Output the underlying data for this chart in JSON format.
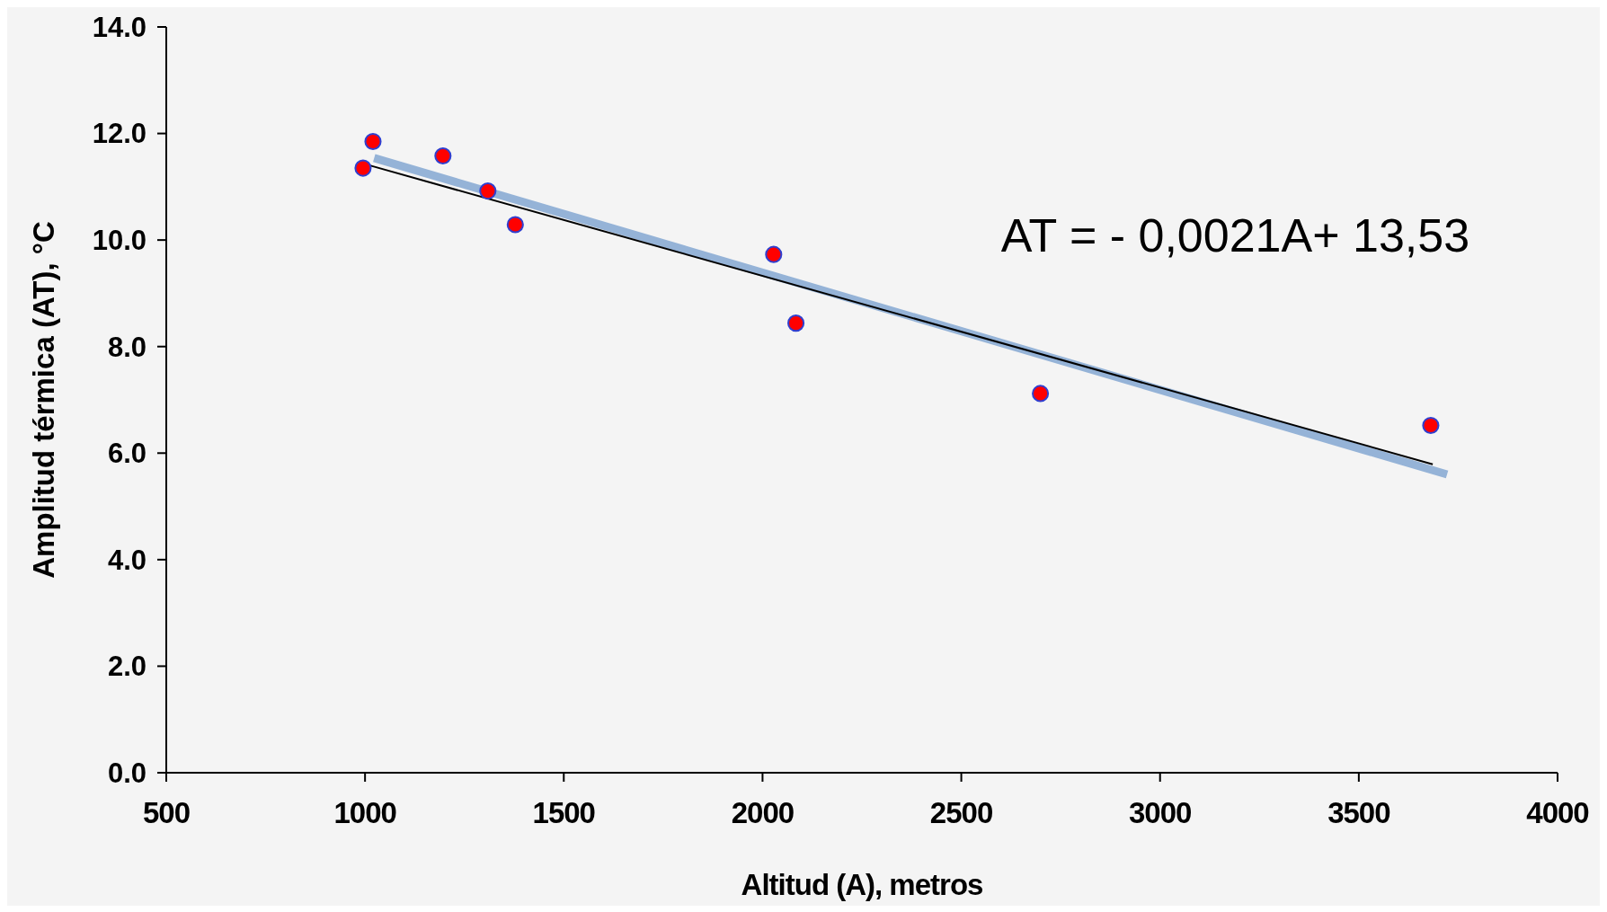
{
  "chart_data": {
    "type": "scatter",
    "xlabel": "Altitud (A), metros",
    "ylabel": "Amplitud térmica (AT), °C",
    "xlim": [
      500,
      4000
    ],
    "xticks": [
      500,
      1000,
      1500,
      2000,
      2500,
      3000,
      3500,
      4000
    ],
    "ylim": [
      0,
      14
    ],
    "yticks": [
      {
        "value": 0,
        "label": "0.0"
      },
      {
        "value": 2,
        "label": "2.0"
      },
      {
        "value": 4,
        "label": "4.0"
      },
      {
        "value": 6,
        "label": "6.0"
      },
      {
        "value": 8,
        "label": "8.0"
      },
      {
        "value": 10,
        "label": "10.0"
      },
      {
        "value": 12,
        "label": "12.0"
      },
      {
        "value": 14,
        "label": "14.0"
      }
    ],
    "grid": false,
    "marker": "circle",
    "series": [
      {
        "type": "line",
        "marker": "none",
        "color": "#95b3d7",
        "x": [
          1023,
          3722
        ],
        "values": [
          11.54,
          5.6
        ]
      },
      {
        "type": "line",
        "marker": "none",
        "color": "#000000",
        "x": [
          1012,
          3686
        ],
        "values": [
          11.4,
          5.79
        ]
      },
      {
        "color": "#ff0000",
        "x": [
          995,
          1020,
          1196,
          1309,
          1378,
          2028,
          2084,
          2699,
          3681
        ],
        "values": [
          11.35,
          11.85,
          11.58,
          10.92,
          10.29,
          9.73,
          8.44,
          7.12,
          6.52
        ]
      }
    ],
    "annotations": [
      "AT = - 0,0021A+ 13,53"
    ]
  }
}
